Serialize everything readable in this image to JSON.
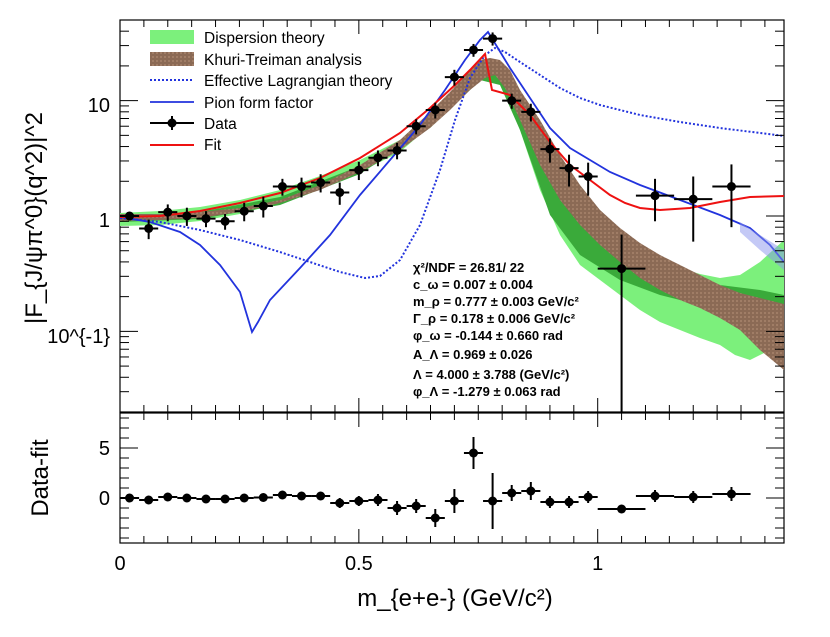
{
  "chart_data": [
    {
      "type": "line",
      "panel": "top",
      "ylabel": "|F_{J/ψπ^0}(q^2)|^2",
      "yscale": "log",
      "xlim": [
        0,
        1.39
      ],
      "ylim": [
        0.02,
        50
      ],
      "ytick_labels": [
        "10^{-1}",
        "1",
        "10"
      ],
      "legend": [
        "Dispersion theory",
        "Khuri-Treiman analysis",
        "Effective Lagrangian theory",
        "Pion form factor",
        "Data",
        "Fit"
      ],
      "fit_info": [
        "χ²/NDF = 26.81/ 22",
        "c_ω = 0.007 ± 0.004",
        "m_ρ = 0.777 ± 0.003 GeV/c²",
        "Γ_ρ = 0.178 ± 0.006 GeV/c²",
        "φ_ω = -0.144 ± 0.660 rad",
        "A_Λ = 0.969 ± 0.026",
        "Λ = 4.000 ± 3.788 (GeV/c²)",
        "φ_Λ = -1.279 ± 0.063 rad"
      ],
      "data": {
        "x": [
          0.02,
          0.06,
          0.1,
          0.14,
          0.18,
          0.22,
          0.26,
          0.3,
          0.34,
          0.38,
          0.42,
          0.46,
          0.5,
          0.54,
          0.58,
          0.62,
          0.66,
          0.7,
          0.74,
          0.78,
          0.82,
          0.86,
          0.9,
          0.94,
          0.98,
          1.05,
          1.12,
          1.2,
          1.28
        ],
        "y": [
          1.0,
          0.78,
          1.08,
          1.0,
          0.95,
          0.9,
          1.1,
          1.22,
          1.8,
          1.8,
          1.95,
          1.6,
          2.5,
          3.2,
          3.7,
          6.0,
          8.3,
          16.0,
          27.5,
          34.5,
          10.0,
          8.0,
          3.8,
          2.6,
          2.2,
          0.35,
          1.5,
          1.4,
          1.8
        ],
        "yerr": [
          0.08,
          0.15,
          0.18,
          0.18,
          0.15,
          0.14,
          0.2,
          0.25,
          0.3,
          0.35,
          0.35,
          0.35,
          0.45,
          0.5,
          0.6,
          0.9,
          1.3,
          2.5,
          3.5,
          4.5,
          1.5,
          1.4,
          0.9,
          0.8,
          0.7,
          0.34,
          0.6,
          0.8,
          1.0
        ],
        "xerr": [
          0.02,
          0.02,
          0.02,
          0.02,
          0.02,
          0.02,
          0.02,
          0.02,
          0.02,
          0.02,
          0.02,
          0.02,
          0.02,
          0.02,
          0.02,
          0.02,
          0.02,
          0.02,
          0.02,
          0.02,
          0.02,
          0.02,
          0.02,
          0.02,
          0.02,
          0.05,
          0.04,
          0.04,
          0.04
        ]
      }
    },
    {
      "type": "scatter",
      "panel": "bottom",
      "ylabel": "Data-fit",
      "xlabel": "m_{e+e-} (GeV/c²)",
      "xlim": [
        0,
        1.39
      ],
      "ylim": [
        -4.5,
        8.5
      ],
      "xticks": [
        0,
        0.5,
        1
      ],
      "xtick_labels": [
        "0",
        "0.5",
        "1"
      ],
      "yticks": [
        0,
        5
      ],
      "ytick_labels": [
        "0",
        "5"
      ],
      "x": [
        0.02,
        0.06,
        0.1,
        0.14,
        0.18,
        0.22,
        0.26,
        0.3,
        0.34,
        0.38,
        0.42,
        0.46,
        0.5,
        0.54,
        0.58,
        0.62,
        0.66,
        0.7,
        0.74,
        0.78,
        0.82,
        0.86,
        0.9,
        0.94,
        0.98,
        1.05,
        1.12,
        1.2,
        1.28
      ],
      "y": [
        0.0,
        -0.2,
        0.1,
        0.0,
        -0.1,
        -0.1,
        0.0,
        0.05,
        0.3,
        0.2,
        0.2,
        -0.5,
        -0.3,
        -0.2,
        -1.0,
        -0.8,
        -2.0,
        -0.3,
        4.5,
        -0.3,
        0.5,
        0.7,
        -0.4,
        -0.4,
        0.1,
        -1.1,
        0.2,
        0.1,
        0.4
      ],
      "yerr": [
        0.25,
        0.25,
        0.25,
        0.25,
        0.25,
        0.25,
        0.25,
        0.3,
        0.3,
        0.35,
        0.35,
        0.5,
        0.5,
        0.6,
        0.7,
        0.7,
        0.9,
        1.2,
        1.6,
        2.8,
        0.8,
        0.9,
        0.6,
        0.6,
        0.6,
        0.3,
        0.6,
        0.6,
        0.7
      ]
    }
  ]
}
